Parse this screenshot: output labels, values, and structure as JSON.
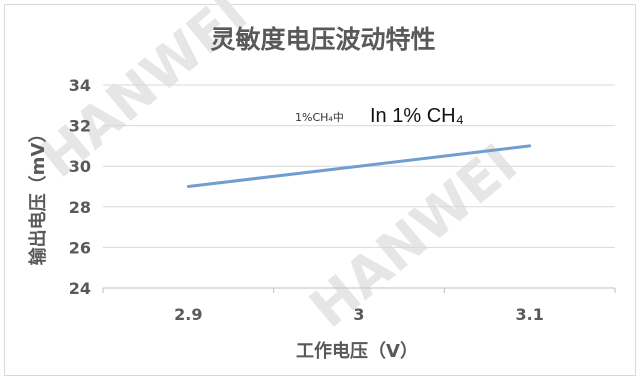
{
  "chart_data": {
    "type": "line",
    "title": "灵敏度电压波动特性",
    "xlabel": "工作电压（V）",
    "ylabel": "输出电压（mV）",
    "categories": [
      "2.9",
      "3",
      "3.1"
    ],
    "x": [
      2.9,
      3.0,
      3.1
    ],
    "series": [
      {
        "values": [
          29.0,
          30.0,
          31.0
        ],
        "color": "#6f9fcf"
      }
    ],
    "ylim": [
      24,
      34
    ],
    "yticks": [
      24,
      26,
      28,
      30,
      32,
      34
    ],
    "grid": "horizontal",
    "annotation": {
      "small": "1%CH₄中",
      "big": "In 1% CH₄"
    }
  }
}
